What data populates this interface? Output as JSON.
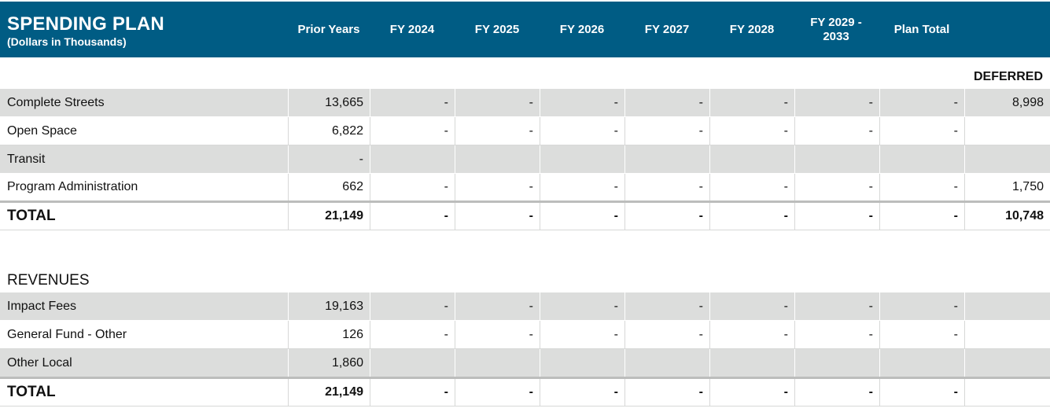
{
  "header": {
    "title": "SPENDING PLAN",
    "subtitle": "(Dollars in Thousands)",
    "columns": [
      "Prior Years",
      "FY 2024",
      "FY 2025",
      "FY 2026",
      "FY 2027",
      "FY 2028",
      "FY 2029 - 2033",
      "Plan Total"
    ]
  },
  "deferred_label": "DEFERRED",
  "spending": {
    "rows": [
      {
        "label": "Complete Streets",
        "cells": [
          "13,665",
          "-",
          "-",
          "-",
          "-",
          "-",
          "-",
          "-",
          "8,998"
        ]
      },
      {
        "label": "Open Space",
        "cells": [
          "6,822",
          "-",
          "-",
          "-",
          "-",
          "-",
          "-",
          "-",
          ""
        ]
      },
      {
        "label": "Transit",
        "cells": [
          "-",
          "",
          "",
          "",
          "",
          "",
          "",
          "",
          ""
        ]
      },
      {
        "label": "Program Administration",
        "cells": [
          "662",
          "-",
          "-",
          "-",
          "-",
          "-",
          "-",
          "-",
          "1,750"
        ]
      }
    ],
    "total": {
      "label": "TOTAL",
      "cells": [
        "21,149",
        "-",
        "-",
        "-",
        "-",
        "-",
        "-",
        "-",
        "10,748"
      ]
    }
  },
  "revenues": {
    "heading": "REVENUES",
    "rows": [
      {
        "label": "Impact Fees",
        "cells": [
          "19,163",
          "-",
          "-",
          "-",
          "-",
          "-",
          "-",
          "-",
          ""
        ]
      },
      {
        "label": "General Fund - Other",
        "cells": [
          "126",
          "-",
          "-",
          "-",
          "-",
          "-",
          "-",
          "-",
          ""
        ]
      },
      {
        "label": "Other Local",
        "cells": [
          "1,860",
          "",
          "",
          "",
          "",
          "",
          "",
          "",
          ""
        ]
      }
    ],
    "total": {
      "label": "TOTAL",
      "cells": [
        "21,149",
        "-",
        "-",
        "-",
        "-",
        "-",
        "-",
        "-",
        ""
      ]
    }
  }
}
